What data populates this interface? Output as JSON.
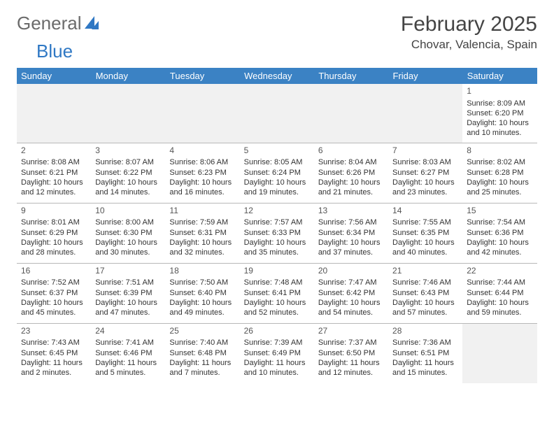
{
  "brand": {
    "word1": "General",
    "word2": "Blue"
  },
  "header": {
    "month_title": "February 2025",
    "location": "Chovar, Valencia, Spain"
  },
  "colors": {
    "header_bg": "#3b82c4",
    "header_text": "#ffffff",
    "border": "#b8b8b8",
    "empty_bg": "#f1f1f1",
    "text": "#333333",
    "logo_gray": "#6b6b6b",
    "logo_blue": "#2f78c4"
  },
  "weekdays": [
    "Sunday",
    "Monday",
    "Tuesday",
    "Wednesday",
    "Thursday",
    "Friday",
    "Saturday"
  ],
  "weeks": [
    [
      null,
      null,
      null,
      null,
      null,
      null,
      {
        "n": "1",
        "sunrise": "8:09 AM",
        "sunset": "6:20 PM",
        "daylight": "10 hours and 10 minutes."
      }
    ],
    [
      {
        "n": "2",
        "sunrise": "8:08 AM",
        "sunset": "6:21 PM",
        "daylight": "10 hours and 12 minutes."
      },
      {
        "n": "3",
        "sunrise": "8:07 AM",
        "sunset": "6:22 PM",
        "daylight": "10 hours and 14 minutes."
      },
      {
        "n": "4",
        "sunrise": "8:06 AM",
        "sunset": "6:23 PM",
        "daylight": "10 hours and 16 minutes."
      },
      {
        "n": "5",
        "sunrise": "8:05 AM",
        "sunset": "6:24 PM",
        "daylight": "10 hours and 19 minutes."
      },
      {
        "n": "6",
        "sunrise": "8:04 AM",
        "sunset": "6:26 PM",
        "daylight": "10 hours and 21 minutes."
      },
      {
        "n": "7",
        "sunrise": "8:03 AM",
        "sunset": "6:27 PM",
        "daylight": "10 hours and 23 minutes."
      },
      {
        "n": "8",
        "sunrise": "8:02 AM",
        "sunset": "6:28 PM",
        "daylight": "10 hours and 25 minutes."
      }
    ],
    [
      {
        "n": "9",
        "sunrise": "8:01 AM",
        "sunset": "6:29 PM",
        "daylight": "10 hours and 28 minutes."
      },
      {
        "n": "10",
        "sunrise": "8:00 AM",
        "sunset": "6:30 PM",
        "daylight": "10 hours and 30 minutes."
      },
      {
        "n": "11",
        "sunrise": "7:59 AM",
        "sunset": "6:31 PM",
        "daylight": "10 hours and 32 minutes."
      },
      {
        "n": "12",
        "sunrise": "7:57 AM",
        "sunset": "6:33 PM",
        "daylight": "10 hours and 35 minutes."
      },
      {
        "n": "13",
        "sunrise": "7:56 AM",
        "sunset": "6:34 PM",
        "daylight": "10 hours and 37 minutes."
      },
      {
        "n": "14",
        "sunrise": "7:55 AM",
        "sunset": "6:35 PM",
        "daylight": "10 hours and 40 minutes."
      },
      {
        "n": "15",
        "sunrise": "7:54 AM",
        "sunset": "6:36 PM",
        "daylight": "10 hours and 42 minutes."
      }
    ],
    [
      {
        "n": "16",
        "sunrise": "7:52 AM",
        "sunset": "6:37 PM",
        "daylight": "10 hours and 45 minutes."
      },
      {
        "n": "17",
        "sunrise": "7:51 AM",
        "sunset": "6:39 PM",
        "daylight": "10 hours and 47 minutes."
      },
      {
        "n": "18",
        "sunrise": "7:50 AM",
        "sunset": "6:40 PM",
        "daylight": "10 hours and 49 minutes."
      },
      {
        "n": "19",
        "sunrise": "7:48 AM",
        "sunset": "6:41 PM",
        "daylight": "10 hours and 52 minutes."
      },
      {
        "n": "20",
        "sunrise": "7:47 AM",
        "sunset": "6:42 PM",
        "daylight": "10 hours and 54 minutes."
      },
      {
        "n": "21",
        "sunrise": "7:46 AM",
        "sunset": "6:43 PM",
        "daylight": "10 hours and 57 minutes."
      },
      {
        "n": "22",
        "sunrise": "7:44 AM",
        "sunset": "6:44 PM",
        "daylight": "10 hours and 59 minutes."
      }
    ],
    [
      {
        "n": "23",
        "sunrise": "7:43 AM",
        "sunset": "6:45 PM",
        "daylight": "11 hours and 2 minutes."
      },
      {
        "n": "24",
        "sunrise": "7:41 AM",
        "sunset": "6:46 PM",
        "daylight": "11 hours and 5 minutes."
      },
      {
        "n": "25",
        "sunrise": "7:40 AM",
        "sunset": "6:48 PM",
        "daylight": "11 hours and 7 minutes."
      },
      {
        "n": "26",
        "sunrise": "7:39 AM",
        "sunset": "6:49 PM",
        "daylight": "11 hours and 10 minutes."
      },
      {
        "n": "27",
        "sunrise": "7:37 AM",
        "sunset": "6:50 PM",
        "daylight": "11 hours and 12 minutes."
      },
      {
        "n": "28",
        "sunrise": "7:36 AM",
        "sunset": "6:51 PM",
        "daylight": "11 hours and 15 minutes."
      },
      null
    ]
  ],
  "labels": {
    "sunrise": "Sunrise:",
    "sunset": "Sunset:",
    "daylight": "Daylight:"
  }
}
